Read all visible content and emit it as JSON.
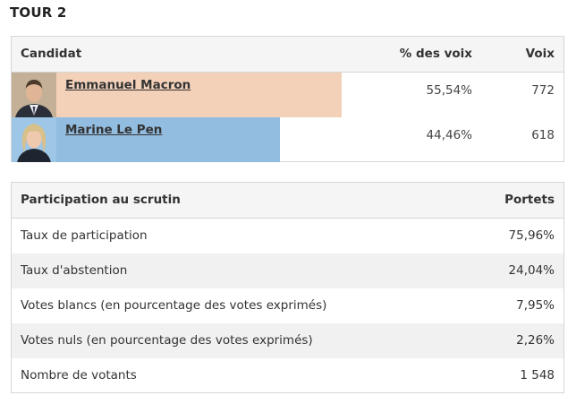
{
  "title": "TOUR 2",
  "results": {
    "headers": {
      "candidate": "Candidat",
      "percent": "% des voix",
      "votes": "Voix"
    },
    "candidates": [
      {
        "name": "Emmanuel Macron",
        "percent": "55,54%",
        "votes": "772",
        "bar_fraction": 0.5554,
        "bar_color": "#f3d1b9"
      },
      {
        "name": "Marine Le Pen",
        "percent": "44,46%",
        "votes": "618",
        "bar_fraction": 0.4446,
        "bar_color": "#92bce0"
      }
    ]
  },
  "participation": {
    "headers": {
      "label": "Participation au scrutin",
      "value": "Portets"
    },
    "rows": [
      {
        "label": "Taux de participation",
        "value": "75,96%"
      },
      {
        "label": "Taux d'abstention",
        "value": "24,04%"
      },
      {
        "label": "Votes blancs (en pourcentage des votes exprimés)",
        "value": "7,95%"
      },
      {
        "label": "Votes nuls (en pourcentage des votes exprimés)",
        "value": "2,26%"
      },
      {
        "label": "Nombre de votants",
        "value": "1 548"
      }
    ]
  },
  "colors": {
    "macron": "#f3d1b9",
    "lepen": "#92bce0",
    "header_bg": "#f5f5f5",
    "alt_row_bg": "#f1f1f1",
    "border": "#d6d6d6"
  }
}
